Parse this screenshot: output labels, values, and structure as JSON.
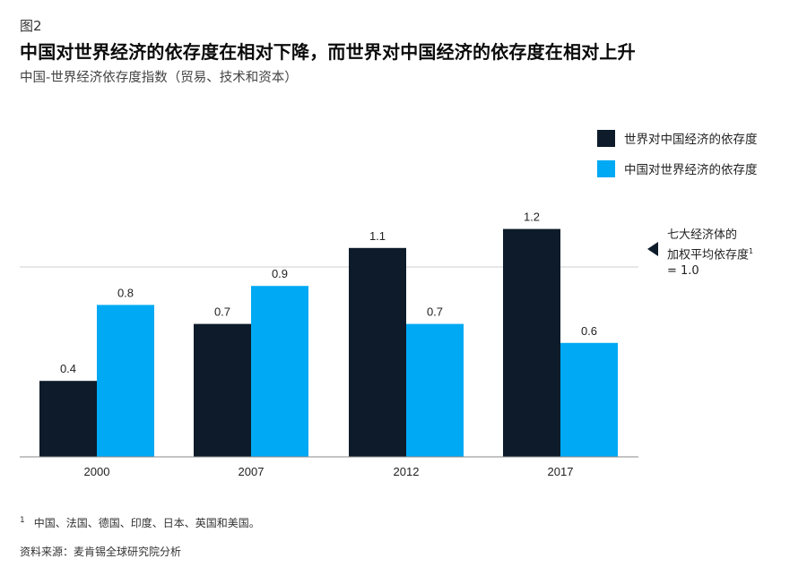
{
  "figure_label": "图2",
  "title": "中国对世界经济的依存度在相对下降，而世界对中国经济的依存度在相对上升",
  "subtitle": "中国-世界经济依存度指数（贸易、技术和资本）",
  "colors": {
    "dark": "#0d1b2a",
    "light": "#00a9f4",
    "reference_line": "#cfcfcf",
    "axis": "#888888"
  },
  "chart_data": {
    "type": "bar",
    "title": "中国对世界经济的依存度在相对下降，而世界对中国经济的依存度在相对上升",
    "categories": [
      "2000",
      "2007",
      "2012",
      "2017"
    ],
    "series": [
      {
        "name": "世界对中国经济的依存度",
        "values": [
          0.4,
          0.7,
          1.1,
          1.2
        ],
        "color": "#0d1b2a"
      },
      {
        "name": "中国对世界经济的依存度",
        "values": [
          0.8,
          0.9,
          0.7,
          0.6
        ],
        "color": "#00a9f4"
      }
    ],
    "data_labels": [
      [
        "0.4",
        "0.7",
        "1.1",
        "1.2"
      ],
      [
        "0.8",
        "0.9",
        "0.7",
        "0.6"
      ]
    ],
    "ylim": [
      0,
      1.4
    ],
    "reference_line": {
      "value": 1.0,
      "label_lines": [
        "七大经济体的",
        "加权平均依存度",
        "= 1.0"
      ],
      "footnote_mark": "1"
    },
    "legend_position": "top-right",
    "grid": false
  },
  "footnote": {
    "mark": "1",
    "text": "中国、法国、德国、印度、日本、英国和美国。"
  },
  "source": "资料来源：麦肯锡全球研究院分析"
}
